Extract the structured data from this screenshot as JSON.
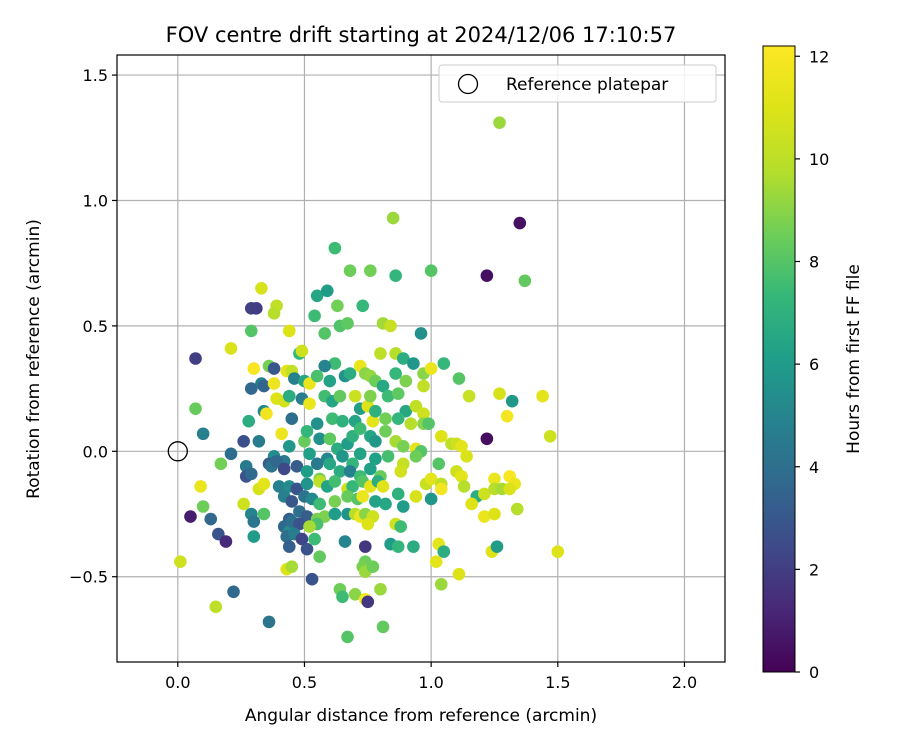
{
  "chart_data": {
    "type": "scatter",
    "title": "FOV centre drift starting at 2024/12/06 17:10:57",
    "xlabel": "Angular distance from reference (arcmin)",
    "ylabel": "Rotation from reference (arcmin)",
    "xlim": [
      -0.24,
      2.16
    ],
    "ylim": [
      -0.84,
      1.58
    ],
    "x_ticks": [
      0.0,
      0.5,
      1.0,
      1.5,
      2.0
    ],
    "x_tick_labels": [
      "0.0",
      "0.5",
      "1.0",
      "1.5",
      "2.0"
    ],
    "y_ticks": [
      -0.5,
      0.0,
      0.5,
      1.0,
      1.5
    ],
    "y_tick_labels": [
      "−0.5",
      "0.0",
      "0.5",
      "1.0",
      "1.5"
    ],
    "grid": true,
    "legend": {
      "placement": "top-right",
      "entries": [
        "Reference platepar"
      ]
    },
    "reference_point": {
      "x": 0.0,
      "y": 0.0
    },
    "colorbar": {
      "label": "Hours from first FF file",
      "colormap": "viridis",
      "range": [
        0,
        12.2
      ],
      "ticks": [
        0,
        2,
        4,
        6,
        8,
        10,
        12
      ],
      "tick_labels": [
        "0",
        "2",
        "4",
        "6",
        "8",
        "10",
        "12"
      ]
    },
    "points": [
      [
        1.27,
        1.31,
        9.3
      ],
      [
        0.85,
        0.93,
        9.3
      ],
      [
        1.35,
        0.91,
        0.5
      ],
      [
        0.62,
        0.81,
        7.5
      ],
      [
        1.22,
        0.7,
        0.4
      ],
      [
        1.37,
        0.68,
        8.3
      ],
      [
        0.68,
        0.72,
        8.5
      ],
      [
        0.76,
        0.72,
        8.6
      ],
      [
        0.86,
        0.7,
        7.2
      ],
      [
        1.0,
        0.72,
        8.0
      ],
      [
        0.33,
        0.65,
        10.8
      ],
      [
        0.39,
        0.58,
        10.1
      ],
      [
        0.38,
        0.55,
        9.8
      ],
      [
        0.29,
        0.57,
        2.1
      ],
      [
        0.31,
        0.57,
        2.0
      ],
      [
        0.55,
        0.62,
        6.5
      ],
      [
        0.59,
        0.64,
        6.0
      ],
      [
        0.63,
        0.58,
        8.6
      ],
      [
        0.73,
        0.58,
        7.3
      ],
      [
        0.54,
        0.54,
        7.5
      ],
      [
        0.58,
        0.47,
        8.0
      ],
      [
        0.64,
        0.5,
        7.9
      ],
      [
        0.67,
        0.51,
        8.2
      ],
      [
        0.81,
        0.51,
        9.4
      ],
      [
        0.84,
        0.5,
        10.3
      ],
      [
        0.96,
        0.47,
        5.5
      ],
      [
        0.29,
        0.48,
        8.0
      ],
      [
        0.44,
        0.48,
        11.0
      ],
      [
        0.07,
        0.37,
        2.0
      ],
      [
        0.21,
        0.41,
        10.9
      ],
      [
        0.48,
        0.39,
        7.3
      ],
      [
        0.49,
        0.4,
        10.5
      ],
      [
        0.62,
        0.35,
        7.5
      ],
      [
        0.58,
        0.34,
        5.0
      ],
      [
        0.72,
        0.34,
        11.5
      ],
      [
        0.74,
        0.31,
        9.0
      ],
      [
        0.8,
        0.39,
        10.0
      ],
      [
        0.86,
        0.39,
        9.8
      ],
      [
        0.89,
        0.37,
        6.8
      ],
      [
        0.93,
        0.35,
        5.8
      ],
      [
        0.97,
        0.31,
        9.0
      ],
      [
        1.0,
        0.33,
        11.5
      ],
      [
        1.05,
        0.35,
        7.3
      ],
      [
        0.3,
        0.33,
        12.0
      ],
      [
        0.36,
        0.34,
        8.6
      ],
      [
        0.38,
        0.33,
        3.0
      ],
      [
        0.33,
        0.27,
        4.8
      ],
      [
        0.34,
        0.26,
        3.5
      ],
      [
        0.38,
        0.27,
        11.6
      ],
      [
        0.43,
        0.32,
        11.3
      ],
      [
        0.45,
        0.32,
        10.2
      ],
      [
        0.46,
        0.29,
        4.8
      ],
      [
        0.5,
        0.28,
        6.5
      ],
      [
        0.52,
        0.27,
        11.5
      ],
      [
        0.55,
        0.3,
        7.8
      ],
      [
        0.6,
        0.28,
        6.3
      ],
      [
        0.66,
        0.3,
        5.6
      ],
      [
        0.68,
        0.31,
        6.8
      ],
      [
        0.76,
        0.3,
        9.2
      ],
      [
        0.78,
        0.28,
        8.5
      ],
      [
        0.81,
        0.26,
        6.6
      ],
      [
        0.86,
        0.31,
        7.3
      ],
      [
        0.9,
        0.28,
        8.8
      ],
      [
        0.97,
        0.26,
        10.1
      ],
      [
        1.11,
        0.29,
        8.0
      ],
      [
        1.27,
        0.23,
        10.8
      ],
      [
        1.15,
        0.22,
        10.3
      ],
      [
        1.32,
        0.2,
        5.8
      ],
      [
        1.44,
        0.22,
        11.2
      ],
      [
        0.29,
        0.25,
        3.7
      ],
      [
        0.39,
        0.21,
        11.0
      ],
      [
        0.42,
        0.2,
        10.7
      ],
      [
        0.44,
        0.22,
        6.8
      ],
      [
        0.49,
        0.21,
        4.7
      ],
      [
        0.52,
        0.19,
        11.5
      ],
      [
        0.58,
        0.22,
        7.6
      ],
      [
        0.61,
        0.2,
        6.5
      ],
      [
        0.64,
        0.22,
        8.3
      ],
      [
        0.7,
        0.22,
        10.4
      ],
      [
        0.72,
        0.17,
        6.0
      ],
      [
        0.75,
        0.18,
        11.0
      ],
      [
        0.76,
        0.22,
        8.8
      ],
      [
        0.83,
        0.22,
        7.5
      ],
      [
        0.87,
        0.23,
        8.2
      ],
      [
        0.9,
        0.16,
        6.6
      ],
      [
        0.94,
        0.18,
        10.1
      ],
      [
        0.97,
        0.15,
        10.5
      ],
      [
        1.3,
        0.14,
        11.8
      ],
      [
        0.07,
        0.17,
        8.4
      ],
      [
        0.28,
        0.12,
        6.8
      ],
      [
        0.34,
        0.16,
        5.2
      ],
      [
        0.35,
        0.15,
        11.7
      ],
      [
        0.45,
        0.13,
        4.0
      ],
      [
        0.55,
        0.11,
        5.5
      ],
      [
        0.61,
        0.13,
        7.5
      ],
      [
        0.65,
        0.12,
        7.0
      ],
      [
        0.7,
        0.12,
        6.4
      ],
      [
        0.77,
        0.12,
        11.3
      ],
      [
        0.78,
        0.16,
        7.0
      ],
      [
        0.82,
        0.13,
        8.6
      ],
      [
        0.87,
        0.13,
        7.2
      ],
      [
        0.92,
        0.11,
        9.8
      ],
      [
        0.97,
        0.11,
        9.0
      ],
      [
        0.99,
        0.11,
        8.0
      ],
      [
        1.04,
        0.06,
        11.0
      ],
      [
        1.08,
        0.03,
        10.0
      ],
      [
        1.1,
        0.03,
        10.5
      ],
      [
        1.12,
        0.02,
        11.2
      ],
      [
        1.22,
        0.05,
        0.4
      ],
      [
        1.47,
        0.06,
        10.5
      ],
      [
        0.1,
        0.07,
        4.8
      ],
      [
        0.26,
        0.04,
        2.7
      ],
      [
        0.32,
        0.04,
        4.6
      ],
      [
        0.41,
        0.07,
        11.6
      ],
      [
        0.44,
        0.02,
        5.8
      ],
      [
        0.5,
        0.04,
        8.4
      ],
      [
        0.51,
        0.08,
        7.2
      ],
      [
        0.56,
        0.05,
        5.5
      ],
      [
        0.6,
        0.05,
        8.2
      ],
      [
        0.63,
        0.01,
        6.8
      ],
      [
        0.67,
        0.03,
        6.0
      ],
      [
        0.69,
        0.06,
        7.0
      ],
      [
        0.72,
        0.09,
        7.5
      ],
      [
        0.76,
        0.06,
        6.5
      ],
      [
        0.78,
        0.04,
        5.8
      ],
      [
        0.82,
        0.08,
        8.5
      ],
      [
        0.86,
        0.04,
        9.5
      ],
      [
        0.89,
        0.02,
        8.7
      ],
      [
        0.94,
        0.01,
        11.3
      ],
      [
        0.96,
        0.0,
        8.0
      ],
      [
        1.14,
        -0.02,
        10.9
      ],
      [
        0.21,
        -0.01,
        3.9
      ],
      [
        0.38,
        -0.02,
        5.3
      ],
      [
        0.42,
        -0.04,
        4.5
      ],
      [
        0.52,
        -0.01,
        6.2
      ],
      [
        0.59,
        -0.03,
        5.0
      ],
      [
        0.65,
        -0.02,
        5.8
      ],
      [
        0.69,
        -0.05,
        7.2
      ],
      [
        0.72,
        -0.01,
        6.3
      ],
      [
        0.78,
        -0.03,
        6.2
      ],
      [
        0.83,
        -0.02,
        7.7
      ],
      [
        0.89,
        -0.05,
        10.2
      ],
      [
        0.94,
        -0.02,
        8.5
      ],
      [
        1.03,
        -0.05,
        8.0
      ],
      [
        1.1,
        -0.08,
        10.5
      ],
      [
        0.17,
        -0.05,
        8.6
      ],
      [
        0.27,
        -0.06,
        4.5
      ],
      [
        0.27,
        -0.1,
        2.8
      ],
      [
        0.29,
        -0.09,
        3.8
      ],
      [
        0.36,
        -0.05,
        3.2
      ],
      [
        0.37,
        -0.06,
        4.2
      ],
      [
        0.39,
        -0.04,
        3.7
      ],
      [
        0.42,
        -0.07,
        2.4
      ],
      [
        0.47,
        -0.06,
        3.2
      ],
      [
        0.51,
        -0.08,
        6.1
      ],
      [
        0.55,
        -0.05,
        4.5
      ],
      [
        0.6,
        -0.05,
        6.5
      ],
      [
        0.64,
        -0.08,
        6.8
      ],
      [
        0.68,
        -0.08,
        4.8
      ],
      [
        0.72,
        -0.1,
        7.5
      ],
      [
        0.76,
        -0.07,
        6.2
      ],
      [
        0.8,
        -0.1,
        8.4
      ],
      [
        0.88,
        -0.08,
        10.6
      ],
      [
        0.98,
        -0.13,
        10.3
      ],
      [
        1.0,
        -0.11,
        11.2
      ],
      [
        1.12,
        -0.1,
        11.2
      ],
      [
        1.25,
        -0.11,
        11.5
      ],
      [
        1.31,
        -0.1,
        12.0
      ],
      [
        1.33,
        -0.13,
        11.5
      ],
      [
        0.09,
        -0.14,
        11.5
      ],
      [
        0.32,
        -0.15,
        10.8
      ],
      [
        0.34,
        -0.13,
        11.2
      ],
      [
        0.4,
        -0.14,
        4.8
      ],
      [
        0.44,
        -0.14,
        5.3
      ],
      [
        0.47,
        -0.15,
        2.8
      ],
      [
        0.51,
        -0.13,
        5.7
      ],
      [
        0.56,
        -0.11,
        8.7
      ],
      [
        0.56,
        -0.12,
        10.0
      ],
      [
        0.59,
        -0.14,
        6.4
      ],
      [
        0.62,
        -0.12,
        7.6
      ],
      [
        0.67,
        -0.15,
        10.5
      ],
      [
        0.69,
        -0.14,
        7.3
      ],
      [
        0.73,
        -0.12,
        8.0
      ],
      [
        0.76,
        -0.14,
        11.3
      ],
      [
        0.79,
        -0.12,
        6.8
      ],
      [
        0.81,
        -0.14,
        11.1
      ],
      [
        0.87,
        -0.17,
        7.0
      ],
      [
        0.94,
        -0.18,
        10.8
      ],
      [
        1.04,
        -0.13,
        10.0
      ],
      [
        1.04,
        -0.15,
        11.8
      ],
      [
        1.13,
        -0.14,
        9.8
      ],
      [
        1.18,
        -0.18,
        6.8
      ],
      [
        1.21,
        -0.17,
        10.5
      ],
      [
        1.25,
        -0.15,
        9.8
      ],
      [
        1.28,
        -0.15,
        9.5
      ],
      [
        1.31,
        -0.15,
        10.9
      ],
      [
        1.0,
        -0.19,
        5.8
      ],
      [
        0.42,
        -0.18,
        4.8
      ],
      [
        0.45,
        -0.2,
        3.0
      ],
      [
        0.5,
        -0.18,
        4.2
      ],
      [
        0.53,
        -0.19,
        5.2
      ],
      [
        0.56,
        -0.21,
        7.5
      ],
      [
        0.62,
        -0.2,
        8.7
      ],
      [
        0.67,
        -0.18,
        8.4
      ],
      [
        0.71,
        -0.19,
        8.0
      ],
      [
        0.73,
        -0.18,
        11.5
      ],
      [
        0.78,
        -0.2,
        6.3
      ],
      [
        0.82,
        -0.21,
        6.5
      ],
      [
        1.16,
        -0.21,
        11.0
      ],
      [
        0.26,
        -0.21,
        10.5
      ],
      [
        0.1,
        -0.22,
        8.5
      ],
      [
        0.05,
        -0.26,
        0.9
      ],
      [
        0.29,
        -0.25,
        5.0
      ],
      [
        0.34,
        -0.25,
        8.0
      ],
      [
        0.44,
        -0.27,
        3.2
      ],
      [
        0.48,
        -0.24,
        4.0
      ],
      [
        0.51,
        -0.26,
        3.2
      ],
      [
        0.55,
        -0.27,
        8.7
      ],
      [
        0.58,
        -0.26,
        8.8
      ],
      [
        0.62,
        -0.25,
        6.0
      ],
      [
        0.67,
        -0.25,
        5.6
      ],
      [
        0.7,
        -0.25,
        9.8
      ],
      [
        0.72,
        -0.26,
        11.5
      ],
      [
        0.74,
        -0.25,
        9.0
      ],
      [
        0.77,
        -0.26,
        10.5
      ],
      [
        0.89,
        -0.22,
        6.0
      ],
      [
        1.21,
        -0.26,
        11.5
      ],
      [
        1.25,
        -0.25,
        11.0
      ],
      [
        1.34,
        -0.23,
        9.8
      ],
      [
        0.13,
        -0.27,
        3.6
      ],
      [
        0.3,
        -0.28,
        4.3
      ],
      [
        0.42,
        -0.3,
        3.7
      ],
      [
        0.44,
        -0.32,
        5.3
      ],
      [
        0.45,
        -0.28,
        4.0
      ],
      [
        0.48,
        -0.29,
        2.8
      ],
      [
        0.55,
        -0.29,
        7.8
      ],
      [
        0.75,
        -0.29,
        11.0
      ],
      [
        0.86,
        -0.29,
        10.5
      ],
      [
        0.88,
        -0.3,
        7.5
      ],
      [
        0.16,
        -0.33,
        2.8
      ],
      [
        0.19,
        -0.36,
        1.3
      ],
      [
        0.3,
        -0.34,
        6.0
      ],
      [
        0.43,
        -0.34,
        4.0
      ],
      [
        0.46,
        -0.33,
        4.6
      ],
      [
        0.49,
        -0.35,
        2.3
      ],
      [
        0.52,
        -0.3,
        9.5
      ],
      [
        0.54,
        -0.35,
        7.5
      ],
      [
        0.66,
        -0.36,
        5.0
      ],
      [
        0.74,
        -0.38,
        1.8
      ],
      [
        0.84,
        -0.37,
        6.0
      ],
      [
        0.87,
        -0.38,
        7.2
      ],
      [
        0.93,
        -0.38,
        6.8
      ],
      [
        1.03,
        -0.37,
        11.2
      ],
      [
        1.05,
        -0.4,
        6.8
      ],
      [
        1.24,
        -0.4,
        11.0
      ],
      [
        1.26,
        -0.38,
        6.0
      ],
      [
        1.5,
        -0.4,
        11.0
      ],
      [
        0.44,
        -0.38,
        3.3
      ],
      [
        0.51,
        -0.39,
        2.8
      ],
      [
        0.56,
        -0.42,
        8.3
      ],
      [
        0.74,
        -0.44,
        8.5
      ],
      [
        0.01,
        -0.44,
        10.5
      ],
      [
        1.02,
        -0.44,
        11.2
      ],
      [
        0.43,
        -0.47,
        11.0
      ],
      [
        0.45,
        -0.46,
        9.5
      ],
      [
        0.73,
        -0.46,
        8.7
      ],
      [
        0.74,
        -0.48,
        9.3
      ],
      [
        0.77,
        -0.46,
        8.5
      ],
      [
        0.53,
        -0.51,
        2.8
      ],
      [
        1.11,
        -0.49,
        11.0
      ],
      [
        1.04,
        -0.53,
        9.3
      ],
      [
        0.64,
        -0.55,
        8.5
      ],
      [
        0.7,
        -0.57,
        9.0
      ],
      [
        0.8,
        -0.55,
        9.3
      ],
      [
        0.65,
        -0.58,
        7.5
      ],
      [
        0.74,
        -0.59,
        12.0
      ],
      [
        0.75,
        -0.6,
        1.8
      ],
      [
        0.22,
        -0.56,
        3.7
      ],
      [
        0.15,
        -0.62,
        10.0
      ],
      [
        0.36,
        -0.68,
        4.2
      ],
      [
        0.81,
        -0.7,
        8.3
      ],
      [
        0.67,
        -0.74,
        8.0
      ]
    ]
  }
}
